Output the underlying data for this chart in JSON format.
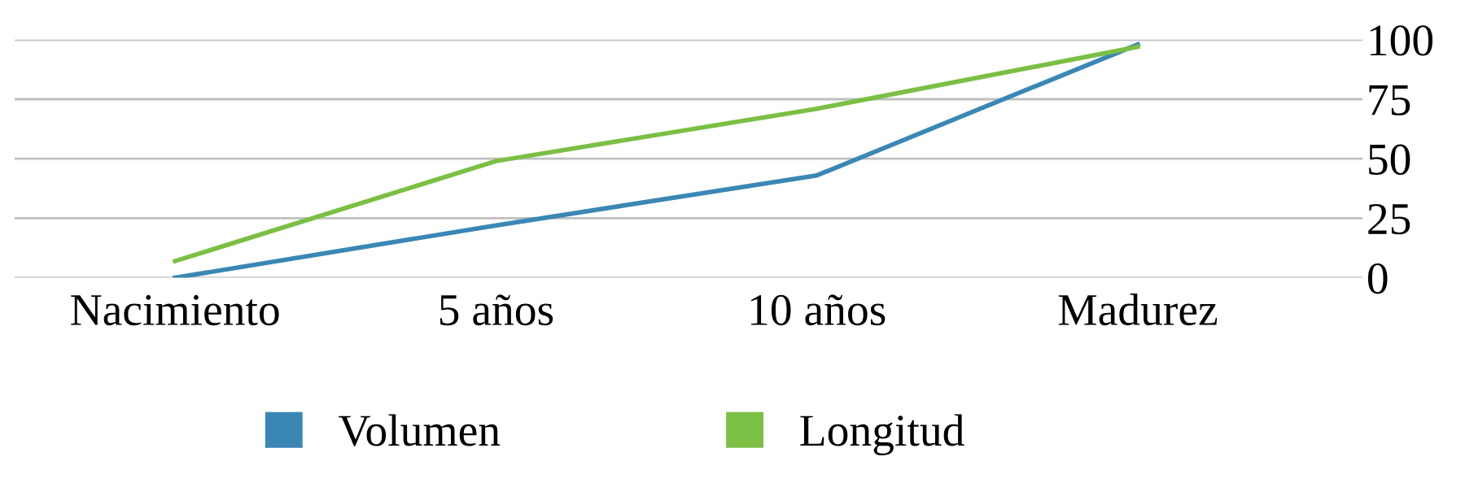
{
  "chart_data": {
    "type": "line",
    "categories": [
      "Nacimiento",
      "5 años",
      "10 años",
      "Madurez"
    ],
    "series": [
      {
        "name": "Volumen",
        "color": "#3a87b5",
        "values": [
          0,
          22,
          43,
          98
        ]
      },
      {
        "name": "Longitud",
        "color": "#7bbf44",
        "values": [
          7,
          49,
          71,
          97
        ]
      }
    ],
    "ylim": [
      0,
      100
    ],
    "yticks": [
      0,
      25,
      50,
      75,
      100
    ],
    "grid": "y",
    "legend": "bottom",
    "marker": "none",
    "line_style": "solid"
  }
}
